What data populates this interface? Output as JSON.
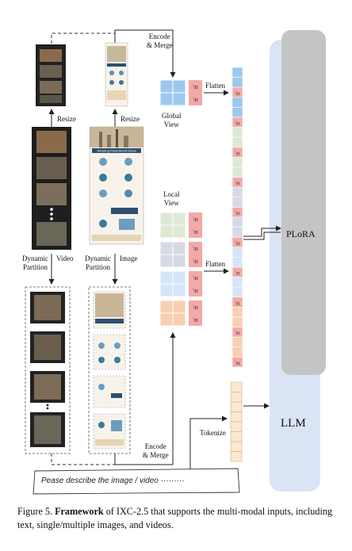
{
  "labels": {
    "encode_merge_top": [
      "Encode",
      "& Merge"
    ],
    "encode_merge_bottom": [
      "Encode",
      "& Merge"
    ],
    "resize_video": "Resize",
    "resize_image": "Resize",
    "global_view": [
      "Global",
      "View"
    ],
    "local_view": [
      "Local",
      "View"
    ],
    "flatten_top": "Flatten",
    "flatten_bottom": "Flatten",
    "tokenize": "Tokenize",
    "dynamic_partition_video": [
      "Dynamic",
      "Partition"
    ],
    "video": "Video",
    "dynamic_partition_image": [
      "Dynamic",
      "Partition"
    ],
    "image": "Image",
    "newline_token": "\\n",
    "plora": "PLoRA",
    "llm": "LLM",
    "query": "Pease describe the image / video ·········"
  },
  "poster_title": "Amazing Facts About Dubai",
  "caption": {
    "prefix": "Figure 5. ",
    "bold": "Framework",
    "rest": " of IXC-2.5 that supports the multi-modal inputs, including text, single/multiple images, and videos."
  },
  "colors": {
    "global_blue": "#9cc8f0",
    "newline_pink": "#f4a8a8",
    "local_green": "#dde9d4",
    "local_lavender": "#d6d9e6",
    "local_lightblue": "#d4e6f7",
    "local_peach": "#f8cfb0",
    "llm_blue": "#dae4f5",
    "plora_gray": "#c4c4c4",
    "text_token": "#fbe9cf"
  }
}
